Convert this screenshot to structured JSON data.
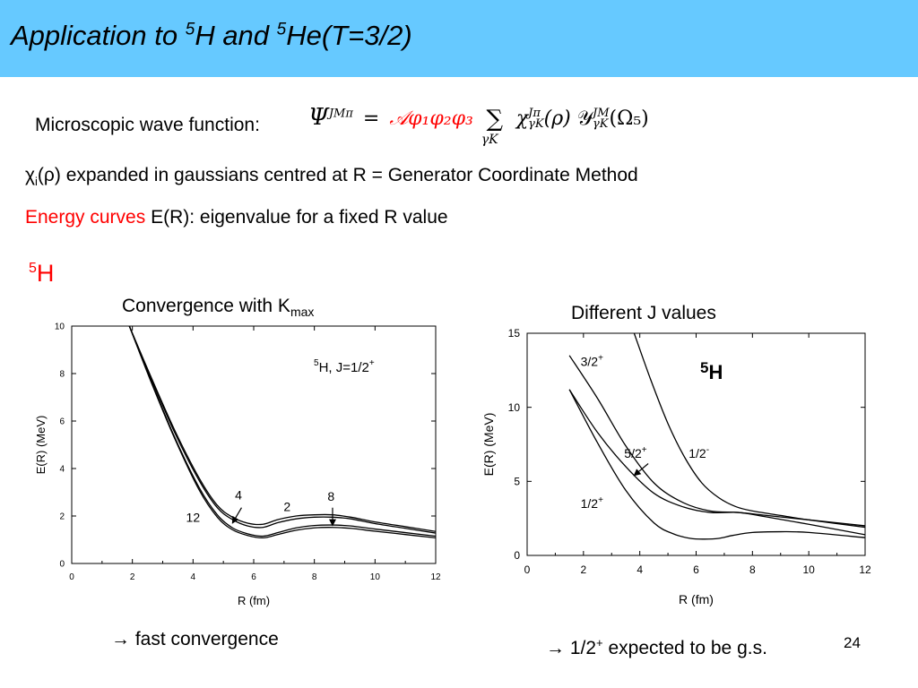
{
  "slide": {
    "title_prefix": "Application to ",
    "title_sup1": "5",
    "title_mid": "H and ",
    "title_sup2": "5",
    "title_suffix": "He(T=3/2)",
    "wf_label": "Microscopic wave function:",
    "line2_chi": "χ",
    "line2_sub": "i",
    "line2_open": "(",
    "line2_rho": "ρ",
    "line2_rest": ") expanded in gaussians centred at R = Generator Coordinate Method",
    "line3_red": "Energy curves",
    "line3_rest": " E(R): eigenvalue for a fixed R value",
    "section_sup": "5",
    "section_text": "H",
    "bottom_left": "→ fast convergence",
    "bottom_right_pre": "→ 1/2",
    "bottom_right_sup": "+",
    "bottom_right_post": " expected to be g.s.",
    "page_number": "24"
  },
  "equation": {
    "psi": "Ψ",
    "psi_sup": "JMπ",
    "equals": "=",
    "antisym": "𝒜",
    "phis": "φ₁φ₂φ₃",
    "sum": "∑",
    "sum_lim": "γK",
    "chi": "χ",
    "chi_sup": "Jπ",
    "chi_sub": "γK",
    "chi_arg": "(ρ)",
    "Y": "𝒴",
    "Y_sup": "JM",
    "Y_sub": "γK",
    "Y_arg": "(Ω₅)"
  },
  "chart_data": [
    {
      "type": "line",
      "title": "Convergence with K",
      "title_sub": "max",
      "xlabel": "R (fm)",
      "ylabel": "E(R) (MeV)",
      "xlim": [
        0,
        12
      ],
      "ylim": [
        0,
        10
      ],
      "xticks": [
        0,
        2,
        4,
        6,
        8,
        10,
        12
      ],
      "yticks": [
        0,
        2,
        4,
        6,
        8,
        10
      ],
      "annotation": {
        "pre": "5",
        "text": "H, J=1/2",
        "sup": "+"
      },
      "series": [
        {
          "label": "4",
          "x": [
            1.9,
            2.6,
            3.4,
            4.2,
            4.8,
            5.3,
            5.8,
            6.3,
            6.8,
            7.4,
            8.0,
            8.6,
            9.2,
            10.0,
            11.0,
            12.0
          ],
          "y": [
            10.0,
            7.9,
            5.6,
            3.6,
            2.45,
            1.95,
            1.7,
            1.65,
            1.85,
            2.0,
            2.05,
            2.05,
            1.95,
            1.75,
            1.55,
            1.35
          ]
        },
        {
          "label": "8",
          "x": [
            1.9,
            2.6,
            3.4,
            4.2,
            4.8,
            5.3,
            5.8,
            6.3,
            6.8,
            7.4,
            8.0,
            8.6,
            9.2,
            10.0,
            11.0,
            12.0
          ],
          "y": [
            10.0,
            7.85,
            5.5,
            3.5,
            2.35,
            1.85,
            1.58,
            1.52,
            1.72,
            1.88,
            1.95,
            1.95,
            1.88,
            1.68,
            1.48,
            1.28
          ]
        },
        {
          "label": "2",
          "x": [
            1.9,
            2.6,
            3.4,
            4.2,
            4.8,
            5.3,
            5.8,
            6.3,
            6.8,
            7.4,
            8.0,
            8.6,
            9.2,
            10.0,
            11.0,
            12.0
          ],
          "y": [
            10.0,
            7.75,
            5.3,
            3.2,
            2.05,
            1.5,
            1.25,
            1.15,
            1.3,
            1.5,
            1.6,
            1.62,
            1.58,
            1.45,
            1.3,
            1.15
          ]
        },
        {
          "label": "12",
          "x": [
            1.9,
            2.6,
            3.4,
            4.2,
            4.8,
            5.3,
            5.8,
            6.3,
            6.8,
            7.4,
            8.0,
            8.6,
            9.2,
            10.0,
            11.0,
            12.0
          ],
          "y": [
            10.0,
            7.7,
            5.25,
            3.1,
            1.95,
            1.42,
            1.18,
            1.08,
            1.22,
            1.4,
            1.5,
            1.52,
            1.48,
            1.36,
            1.22,
            1.08
          ]
        }
      ],
      "labels": [
        {
          "text": "4",
          "x": 5.5,
          "y": 2.7
        },
        {
          "text": "2",
          "x": 7.1,
          "y": 2.2
        },
        {
          "text": "8",
          "x": 8.55,
          "y": 2.65
        },
        {
          "text": "12",
          "x": 4.0,
          "y": 1.75
        }
      ],
      "arrows": [
        {
          "from": [
            5.6,
            2.35
          ],
          "to": [
            5.3,
            1.7
          ]
        },
        {
          "from": [
            8.6,
            2.35
          ],
          "to": [
            8.6,
            1.6
          ]
        }
      ]
    },
    {
      "type": "line",
      "title": "Different J values",
      "xlabel": "R (fm)",
      "ylabel": "E(R) (MeV)",
      "xlim": [
        0,
        12
      ],
      "ylim": [
        0,
        15
      ],
      "xticks": [
        0,
        2,
        4,
        6,
        8,
        10,
        12
      ],
      "yticks": [
        0,
        5,
        10,
        15
      ],
      "annotation": {
        "pre": "5",
        "text": "H"
      },
      "series": [
        {
          "label": "3/2+",
          "x": [
            1.5,
            2.5,
            3.5,
            4.5,
            5.5,
            6.5,
            7.5,
            8.5,
            10.0,
            12.0
          ],
          "y": [
            13.5,
            10.6,
            7.4,
            4.9,
            3.6,
            3.0,
            2.9,
            2.7,
            2.4,
            2.0
          ]
        },
        {
          "label": "1/2-",
          "x": [
            3.8,
            4.4,
            5.0,
            5.6,
            6.2,
            6.8,
            7.4,
            8.0,
            9.0,
            10.0,
            12.0
          ],
          "y": [
            15.0,
            11.8,
            8.9,
            6.6,
            4.9,
            3.9,
            3.3,
            3.0,
            2.7,
            2.4,
            1.9
          ]
        },
        {
          "label": "5/2+",
          "x": [
            1.5,
            2.5,
            3.5,
            4.5,
            5.5,
            6.5,
            7.5,
            8.5,
            10.0,
            12.0
          ],
          "y": [
            11.2,
            8.3,
            6.0,
            4.2,
            3.3,
            2.9,
            2.9,
            2.6,
            2.1,
            1.4
          ]
        },
        {
          "label": "1/2+",
          "x": [
            1.5,
            2.5,
            3.5,
            4.5,
            5.2,
            5.8,
            6.3,
            6.8,
            7.3,
            8.0,
            9.0,
            10.0,
            12.0
          ],
          "y": [
            11.2,
            7.6,
            4.4,
            2.2,
            1.45,
            1.15,
            1.1,
            1.15,
            1.35,
            1.55,
            1.6,
            1.55,
            1.2
          ]
        }
      ],
      "labels": [
        {
          "text": "3/2",
          "sup": "+",
          "x": 2.3,
          "y": 12.8
        },
        {
          "text": "5/2",
          "sup": "+",
          "x": 3.85,
          "y": 6.6
        },
        {
          "text": "1/2",
          "sup": "-",
          "x": 6.1,
          "y": 6.6
        },
        {
          "text": "1/2",
          "sup": "+",
          "x": 2.3,
          "y": 3.2
        }
      ],
      "arrows": [
        {
          "from": [
            4.3,
            6.2
          ],
          "to": [
            3.8,
            5.4
          ]
        }
      ]
    }
  ]
}
